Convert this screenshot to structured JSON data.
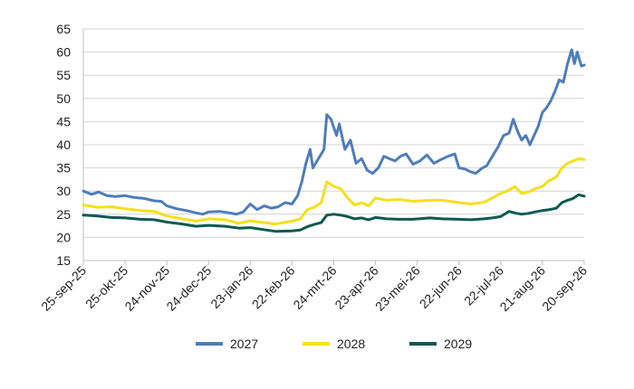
{
  "chart_data": {
    "type": "line",
    "title": "",
    "xlabel": "",
    "ylabel": "",
    "ylim": [
      15,
      65
    ],
    "yticks": [
      "15",
      "20",
      "25",
      "30",
      "35",
      "40",
      "45",
      "50",
      "55",
      "60",
      "65"
    ],
    "x_ticks": [
      "25-sep-25",
      "25-okt-25",
      "24-nov-25",
      "24-dec-25",
      "23-jan-26",
      "22-feb-26",
      "24-mrt-26",
      "23-apr-26",
      "23-mei-26",
      "22-jun-26",
      "22-jul-26",
      "21-aug-26",
      "20-sep-26"
    ],
    "grid": "horizontal",
    "legend_position": "bottom",
    "series": [
      {
        "name": "2027",
        "color": "#4f7db8",
        "points": [
          [
            "25-sep-25",
            30.0
          ],
          [
            "1-okt-25",
            29.3
          ],
          [
            "6-okt-25",
            29.8
          ],
          [
            "12-okt-25",
            29.0
          ],
          [
            "18-okt-25",
            28.8
          ],
          [
            "25-okt-25",
            29.0
          ],
          [
            "1-nov-25",
            28.6
          ],
          [
            "8-nov-25",
            28.4
          ],
          [
            "15-nov-25",
            27.9
          ],
          [
            "20-nov-25",
            27.8
          ],
          [
            "24-nov-25",
            26.8
          ],
          [
            "1-dec-25",
            26.2
          ],
          [
            "8-dec-25",
            25.8
          ],
          [
            "15-dec-25",
            25.3
          ],
          [
            "20-dec-25",
            25.0
          ],
          [
            "24-dec-25",
            25.5
          ],
          [
            "1-jan-26",
            25.6
          ],
          [
            "8-jan-26",
            25.3
          ],
          [
            "13-jan-26",
            25.0
          ],
          [
            "18-jan-26",
            25.5
          ],
          [
            "23-jan-26",
            27.2
          ],
          [
            "28-jan-26",
            26.0
          ],
          [
            "2-feb-26",
            26.8
          ],
          [
            "7-feb-26",
            26.3
          ],
          [
            "12-feb-26",
            26.6
          ],
          [
            "17-feb-26",
            27.5
          ],
          [
            "22-feb-26",
            27.2
          ],
          [
            "26-feb-26",
            29.0
          ],
          [
            "1-mrt-26",
            32.0
          ],
          [
            "4-mrt-26",
            36.0
          ],
          [
            "7-mrt-26",
            39.0
          ],
          [
            "9-mrt-26",
            35.0
          ],
          [
            "13-mrt-26",
            37.0
          ],
          [
            "17-mrt-26",
            39.0
          ],
          [
            "19-mrt-26",
            46.5
          ],
          [
            "22-mrt-26",
            45.5
          ],
          [
            "26-mrt-26",
            42.0
          ],
          [
            "28-mrt-26",
            44.5
          ],
          [
            "1-apr-26",
            39.0
          ],
          [
            "5-apr-26",
            41.0
          ],
          [
            "9-apr-26",
            36.0
          ],
          [
            "13-apr-26",
            37.0
          ],
          [
            "17-apr-26",
            34.5
          ],
          [
            "21-apr-26",
            33.8
          ],
          [
            "25-apr-26",
            35.0
          ],
          [
            "29-apr-26",
            37.5
          ],
          [
            "3-mei-26",
            37.0
          ],
          [
            "7-mei-26",
            36.5
          ],
          [
            "11-mei-26",
            37.5
          ],
          [
            "15-mei-26",
            38.0
          ],
          [
            "20-mei-26",
            35.8
          ],
          [
            "25-mei-26",
            36.5
          ],
          [
            "30-mei-26",
            37.8
          ],
          [
            "4-jun-26",
            36.0
          ],
          [
            "9-jun-26",
            36.8
          ],
          [
            "14-jun-26",
            37.5
          ],
          [
            "19-jun-26",
            38.0
          ],
          [
            "22-jun-26",
            35.0
          ],
          [
            "26-jun-26",
            34.8
          ],
          [
            "30-jun-26",
            34.2
          ],
          [
            "4-jul-26",
            33.8
          ],
          [
            "8-jul-26",
            34.8
          ],
          [
            "12-jul-26",
            35.5
          ],
          [
            "16-jul-26",
            37.5
          ],
          [
            "20-jul-26",
            39.5
          ],
          [
            "24-jul-26",
            42.0
          ],
          [
            "28-jul-26",
            42.5
          ],
          [
            "31-jul-26",
            45.5
          ],
          [
            "3-aug-26",
            43.0
          ],
          [
            "6-aug-26",
            41.0
          ],
          [
            "9-aug-26",
            42.0
          ],
          [
            "12-aug-26",
            40.0
          ],
          [
            "15-aug-26",
            42.0
          ],
          [
            "18-aug-26",
            44.0
          ],
          [
            "21-aug-26",
            47.0
          ],
          [
            "24-aug-26",
            48.0
          ],
          [
            "27-aug-26",
            49.5
          ],
          [
            "30-aug-26",
            51.5
          ],
          [
            "2-sep-26",
            54.0
          ],
          [
            "5-sep-26",
            53.5
          ],
          [
            "8-sep-26",
            57.5
          ],
          [
            "11-sep-26",
            60.5
          ],
          [
            "13-sep-26",
            57.5
          ],
          [
            "15-sep-26",
            60.0
          ],
          [
            "18-sep-26",
            57.0
          ],
          [
            "20-sep-26",
            57.2
          ]
        ]
      },
      {
        "name": "2028",
        "color": "#f5df1c",
        "points": [
          [
            "25-sep-25",
            27.0
          ],
          [
            "5-okt-25",
            26.5
          ],
          [
            "15-okt-25",
            26.6
          ],
          [
            "25-okt-25",
            26.2
          ],
          [
            "5-nov-25",
            25.8
          ],
          [
            "15-nov-25",
            25.6
          ],
          [
            "24-nov-25",
            24.6
          ],
          [
            "5-dec-25",
            24.0
          ],
          [
            "15-dec-25",
            23.5
          ],
          [
            "24-dec-25",
            24.0
          ],
          [
            "5-jan-26",
            23.8
          ],
          [
            "15-jan-26",
            23.0
          ],
          [
            "23-jan-26",
            23.6
          ],
          [
            "1-feb-26",
            23.2
          ],
          [
            "10-feb-26",
            22.9
          ],
          [
            "22-feb-26",
            23.5
          ],
          [
            "28-feb-26",
            24.0
          ],
          [
            "5-mrt-26",
            26.0
          ],
          [
            "10-mrt-26",
            26.5
          ],
          [
            "15-mrt-26",
            27.5
          ],
          [
            "19-mrt-26",
            32.0
          ],
          [
            "24-mrt-26",
            31.0
          ],
          [
            "29-mrt-26",
            30.5
          ],
          [
            "3-apr-26",
            28.5
          ],
          [
            "8-apr-26",
            27.0
          ],
          [
            "13-apr-26",
            27.5
          ],
          [
            "18-apr-26",
            26.8
          ],
          [
            "23-apr-26",
            28.5
          ],
          [
            "1-mei-26",
            28.0
          ],
          [
            "10-mei-26",
            28.2
          ],
          [
            "20-mei-26",
            27.8
          ],
          [
            "1-jun-26",
            28.0
          ],
          [
            "10-jun-26",
            28.0
          ],
          [
            "22-jun-26",
            27.5
          ],
          [
            "1-jul-26",
            27.2
          ],
          [
            "10-jul-26",
            27.6
          ],
          [
            "16-jul-26",
            28.5
          ],
          [
            "22-jul-26",
            29.5
          ],
          [
            "28-jul-26",
            30.2
          ],
          [
            "1-aug-26",
            31.0
          ],
          [
            "6-aug-26",
            29.5
          ],
          [
            "11-aug-26",
            29.8
          ],
          [
            "16-aug-26",
            30.5
          ],
          [
            "21-aug-26",
            31.0
          ],
          [
            "26-aug-26",
            32.3
          ],
          [
            "31-aug-26",
            33.0
          ],
          [
            "4-sep-26",
            35.0
          ],
          [
            "8-sep-26",
            36.0
          ],
          [
            "12-sep-26",
            36.5
          ],
          [
            "16-sep-26",
            37.0
          ],
          [
            "20-sep-26",
            36.8
          ]
        ]
      },
      {
        "name": "2029",
        "color": "#0e5a4e",
        "points": [
          [
            "25-sep-25",
            24.8
          ],
          [
            "5-okt-25",
            24.6
          ],
          [
            "15-okt-25",
            24.3
          ],
          [
            "25-okt-25",
            24.2
          ],
          [
            "5-nov-25",
            23.9
          ],
          [
            "15-nov-25",
            23.8
          ],
          [
            "24-nov-25",
            23.3
          ],
          [
            "5-dec-25",
            22.9
          ],
          [
            "15-dec-25",
            22.4
          ],
          [
            "24-dec-25",
            22.6
          ],
          [
            "5-jan-26",
            22.4
          ],
          [
            "15-jan-26",
            22.0
          ],
          [
            "23-jan-26",
            22.1
          ],
          [
            "1-feb-26",
            21.7
          ],
          [
            "10-feb-26",
            21.3
          ],
          [
            "22-feb-26",
            21.4
          ],
          [
            "28-feb-26",
            21.6
          ],
          [
            "5-mrt-26",
            22.3
          ],
          [
            "10-mrt-26",
            22.8
          ],
          [
            "15-mrt-26",
            23.2
          ],
          [
            "19-mrt-26",
            24.8
          ],
          [
            "24-mrt-26",
            25.0
          ],
          [
            "29-mrt-26",
            24.8
          ],
          [
            "3-apr-26",
            24.5
          ],
          [
            "8-apr-26",
            24.0
          ],
          [
            "13-apr-26",
            24.2
          ],
          [
            "18-apr-26",
            23.8
          ],
          [
            "23-apr-26",
            24.3
          ],
          [
            "1-mei-26",
            24.0
          ],
          [
            "10-mei-26",
            23.9
          ],
          [
            "20-mei-26",
            23.9
          ],
          [
            "1-jun-26",
            24.2
          ],
          [
            "10-jun-26",
            24.0
          ],
          [
            "22-jun-26",
            23.9
          ],
          [
            "1-jul-26",
            23.8
          ],
          [
            "10-jul-26",
            24.0
          ],
          [
            "16-jul-26",
            24.2
          ],
          [
            "22-jul-26",
            24.5
          ],
          [
            "28-jul-26",
            25.6
          ],
          [
            "1-aug-26",
            25.3
          ],
          [
            "6-aug-26",
            25.0
          ],
          [
            "11-aug-26",
            25.2
          ],
          [
            "16-aug-26",
            25.5
          ],
          [
            "21-aug-26",
            25.8
          ],
          [
            "26-aug-26",
            26.0
          ],
          [
            "31-aug-26",
            26.3
          ],
          [
            "4-sep-26",
            27.5
          ],
          [
            "8-sep-26",
            28.0
          ],
          [
            "12-sep-26",
            28.4
          ],
          [
            "16-sep-26",
            29.2
          ],
          [
            "20-sep-26",
            28.9
          ]
        ]
      }
    ]
  }
}
